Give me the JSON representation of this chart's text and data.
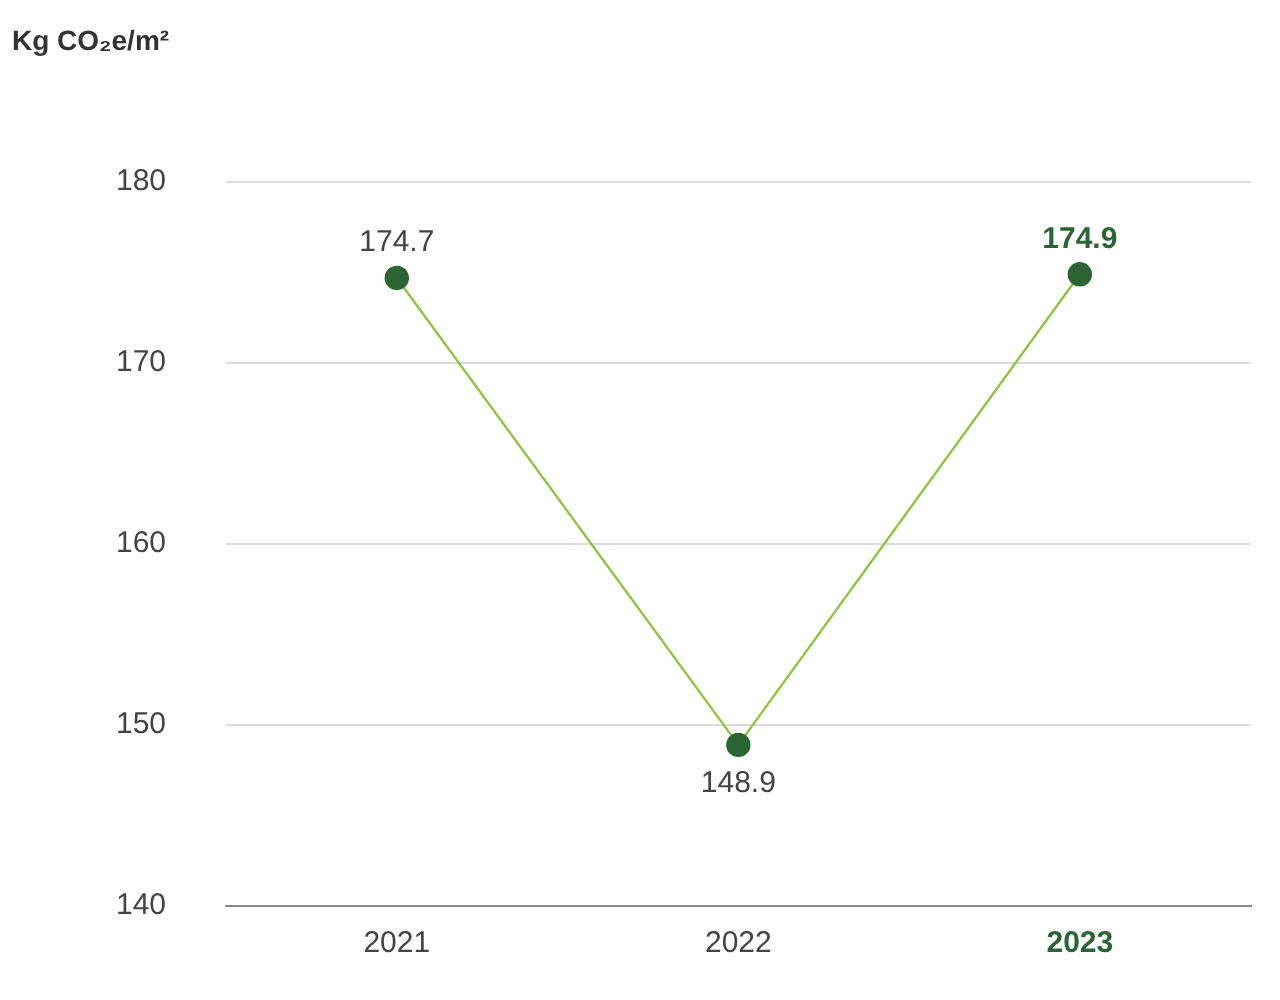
{
  "chart_data": {
    "type": "line",
    "ylabel": "Kg CO₂e/m²",
    "categories": [
      "2021",
      "2022",
      "2023"
    ],
    "series": [
      {
        "color": "#8cc63e",
        "colors": [
          "#2b6534",
          "#2b6534",
          "#2b6534"
        ],
        "values": [
          174.7,
          148.9,
          174.9
        ]
      }
    ],
    "marker": "circle",
    "ylim": [
      140,
      180
    ],
    "yticks": [
      140,
      150,
      160,
      170,
      180
    ],
    "grid": "y",
    "legend": false,
    "data_labels": true
  }
}
